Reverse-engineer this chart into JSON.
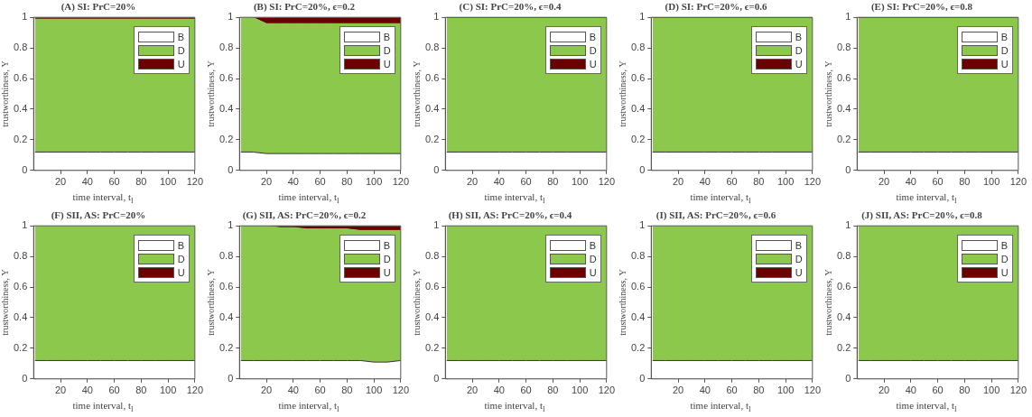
{
  "chart_data": [
    {
      "type": "area",
      "stacked": true,
      "title": "(A) SI: PrC=20%",
      "xlabel": "time interval, t$_{l}$",
      "ylabel": "trustworthiness, Υ",
      "x": [
        1,
        10,
        20,
        30,
        40,
        50,
        60,
        70,
        80,
        90,
        100,
        110,
        120
      ],
      "xlim": [
        0,
        120
      ],
      "xticks": [
        20,
        40,
        60,
        80,
        100,
        120
      ],
      "ylim": [
        0,
        1
      ],
      "yticks": [
        0,
        0.2,
        0.4,
        0.6,
        0.8,
        1
      ],
      "legend": "top right",
      "marker": "none",
      "series": [
        {
          "name": "B",
          "color": "#ffffff",
          "values": [
            0.12,
            0.12,
            0.12,
            0.12,
            0.12,
            0.12,
            0.12,
            0.12,
            0.12,
            0.12,
            0.12,
            0.12,
            0.12
          ]
        },
        {
          "name": "D",
          "color": "#8cc84b",
          "values": [
            0.87,
            0.87,
            0.87,
            0.87,
            0.87,
            0.87,
            0.87,
            0.87,
            0.87,
            0.87,
            0.87,
            0.87,
            0.87
          ]
        },
        {
          "name": "U",
          "color": "#6b0000",
          "values": [
            0.01,
            0.01,
            0.01,
            0.01,
            0.01,
            0.01,
            0.01,
            0.01,
            0.01,
            0.01,
            0.01,
            0.01,
            0.01
          ]
        }
      ]
    },
    {
      "type": "area",
      "stacked": true,
      "title": "(B) SI: PrC=20%, ϵ=0.2",
      "xlabel": "time interval, t$_{l}$",
      "ylabel": "trustworthiness, Υ",
      "x": [
        1,
        10,
        20,
        30,
        40,
        50,
        60,
        70,
        80,
        90,
        100,
        110,
        120
      ],
      "xlim": [
        0,
        120
      ],
      "xticks": [
        20,
        40,
        60,
        80,
        100,
        120
      ],
      "ylim": [
        0,
        1
      ],
      "yticks": [
        0,
        0.2,
        0.4,
        0.6,
        0.8,
        1
      ],
      "legend": "top right",
      "marker": "none",
      "series": [
        {
          "name": "B",
          "color": "#ffffff",
          "values": [
            0.12,
            0.12,
            0.11,
            0.11,
            0.11,
            0.11,
            0.11,
            0.11,
            0.11,
            0.11,
            0.11,
            0.11,
            0.11
          ]
        },
        {
          "name": "D",
          "color": "#8cc84b",
          "values": [
            0.88,
            0.88,
            0.85,
            0.85,
            0.85,
            0.85,
            0.85,
            0.85,
            0.85,
            0.85,
            0.85,
            0.85,
            0.85
          ]
        },
        {
          "name": "U",
          "color": "#6b0000",
          "values": [
            0,
            0,
            0.04,
            0.04,
            0.04,
            0.04,
            0.04,
            0.04,
            0.04,
            0.04,
            0.04,
            0.04,
            0.04
          ]
        }
      ]
    },
    {
      "type": "area",
      "stacked": true,
      "title": "(C) SI: PrC=20%, ϵ=0.4",
      "xlabel": "time interval, t$_{l}$",
      "ylabel": "trustworthiness, Υ",
      "x": [
        1,
        10,
        20,
        30,
        40,
        50,
        60,
        70,
        80,
        90,
        100,
        110,
        120
      ],
      "xlim": [
        0,
        120
      ],
      "xticks": [
        20,
        40,
        60,
        80,
        100,
        120
      ],
      "ylim": [
        0,
        1
      ],
      "yticks": [
        0,
        0.2,
        0.4,
        0.6,
        0.8,
        1
      ],
      "legend": "top right",
      "marker": "none",
      "series": [
        {
          "name": "B",
          "color": "#ffffff",
          "values": [
            0.12,
            0.12,
            0.12,
            0.12,
            0.12,
            0.12,
            0.12,
            0.12,
            0.12,
            0.12,
            0.12,
            0.12,
            0.12
          ]
        },
        {
          "name": "D",
          "color": "#8cc84b",
          "values": [
            0.875,
            0.875,
            0.875,
            0.875,
            0.875,
            0.875,
            0.875,
            0.875,
            0.875,
            0.875,
            0.875,
            0.875,
            0.875
          ]
        },
        {
          "name": "U",
          "color": "#6b0000",
          "values": [
            0.005,
            0.005,
            0.005,
            0.005,
            0.005,
            0.005,
            0.005,
            0.005,
            0.005,
            0.005,
            0.005,
            0.005,
            0.005
          ]
        }
      ]
    },
    {
      "type": "area",
      "stacked": true,
      "title": "(D) SI: PrC=20%, ϵ=0.6",
      "xlabel": "time interval, t$_{l}$",
      "ylabel": "trustworthiness, Υ",
      "x": [
        1,
        10,
        20,
        30,
        40,
        50,
        60,
        70,
        80,
        90,
        100,
        110,
        120
      ],
      "xlim": [
        0,
        120
      ],
      "xticks": [
        20,
        40,
        60,
        80,
        100,
        120
      ],
      "ylim": [
        0,
        1
      ],
      "yticks": [
        0,
        0.2,
        0.4,
        0.6,
        0.8,
        1
      ],
      "legend": "top right",
      "marker": "none",
      "series": [
        {
          "name": "B",
          "color": "#ffffff",
          "values": [
            0.12,
            0.12,
            0.12,
            0.12,
            0.12,
            0.12,
            0.12,
            0.12,
            0.12,
            0.12,
            0.12,
            0.12,
            0.12
          ]
        },
        {
          "name": "D",
          "color": "#8cc84b",
          "values": [
            0.875,
            0.875,
            0.875,
            0.875,
            0.875,
            0.875,
            0.875,
            0.875,
            0.875,
            0.875,
            0.875,
            0.875,
            0.875
          ]
        },
        {
          "name": "U",
          "color": "#6b0000",
          "values": [
            0.005,
            0.005,
            0.005,
            0.005,
            0.005,
            0.005,
            0.005,
            0.005,
            0.005,
            0.005,
            0.005,
            0.005,
            0.005
          ]
        }
      ]
    },
    {
      "type": "area",
      "stacked": true,
      "title": "(E) SI: PrC=20%, ϵ=0.8",
      "xlabel": "time interval, t$_{l}$",
      "ylabel": "trustworthiness, Υ",
      "x": [
        1,
        10,
        20,
        30,
        40,
        50,
        60,
        70,
        80,
        90,
        100,
        110,
        120
      ],
      "xlim": [
        0,
        120
      ],
      "xticks": [
        20,
        40,
        60,
        80,
        100,
        120
      ],
      "ylim": [
        0,
        1
      ],
      "yticks": [
        0,
        0.2,
        0.4,
        0.6,
        0.8,
        1
      ],
      "legend": "top right",
      "marker": "none",
      "series": [
        {
          "name": "B",
          "color": "#ffffff",
          "values": [
            0.12,
            0.12,
            0.12,
            0.12,
            0.12,
            0.12,
            0.12,
            0.12,
            0.12,
            0.12,
            0.12,
            0.12,
            0.12
          ]
        },
        {
          "name": "D",
          "color": "#8cc84b",
          "values": [
            0.875,
            0.875,
            0.875,
            0.875,
            0.875,
            0.875,
            0.875,
            0.875,
            0.875,
            0.875,
            0.875,
            0.875,
            0.875
          ]
        },
        {
          "name": "U",
          "color": "#6b0000",
          "values": [
            0.005,
            0.005,
            0.005,
            0.005,
            0.005,
            0.005,
            0.005,
            0.005,
            0.005,
            0.005,
            0.005,
            0.005,
            0.005
          ]
        }
      ]
    },
    {
      "type": "area",
      "stacked": true,
      "title": "(F) SII, AS: PrC=20%",
      "xlabel": "time interval, t$_{l}$",
      "ylabel": "trustworthiness, Υ",
      "x": [
        1,
        10,
        20,
        30,
        40,
        50,
        60,
        70,
        80,
        90,
        100,
        110,
        120
      ],
      "xlim": [
        0,
        120
      ],
      "xticks": [
        20,
        40,
        60,
        80,
        100,
        120
      ],
      "ylim": [
        0,
        1
      ],
      "yticks": [
        0,
        0.2,
        0.4,
        0.6,
        0.8,
        1
      ],
      "legend": "top right",
      "marker": "none",
      "series": [
        {
          "name": "B",
          "color": "#ffffff",
          "values": [
            0.12,
            0.12,
            0.12,
            0.12,
            0.12,
            0.12,
            0.12,
            0.12,
            0.12,
            0.12,
            0.12,
            0.12,
            0.12
          ]
        },
        {
          "name": "D",
          "color": "#8cc84b",
          "values": [
            0.88,
            0.88,
            0.88,
            0.88,
            0.88,
            0.88,
            0.88,
            0.88,
            0.88,
            0.88,
            0.88,
            0.88,
            0.88
          ]
        },
        {
          "name": "U",
          "color": "#6b0000",
          "values": [
            null,
            null,
            null,
            null,
            null,
            null,
            null,
            null,
            null,
            null,
            null,
            null,
            null
          ]
        }
      ]
    },
    {
      "type": "area",
      "stacked": true,
      "title": "(G) SII, AS: PrC=20%, ϵ=0.2",
      "xlabel": "time interval, t$_{l}$",
      "ylabel": "trustworthiness, Υ",
      "x": [
        1,
        10,
        20,
        30,
        40,
        50,
        60,
        70,
        80,
        90,
        100,
        110,
        120
      ],
      "xlim": [
        0,
        120
      ],
      "xticks": [
        20,
        40,
        60,
        80,
        100,
        120
      ],
      "ylim": [
        0,
        1
      ],
      "yticks": [
        0,
        0.2,
        0.4,
        0.6,
        0.8,
        1
      ],
      "legend": "top right",
      "marker": "none",
      "series": [
        {
          "name": "B",
          "color": "#ffffff",
          "values": [
            0.12,
            0.12,
            0.12,
            0.12,
            0.12,
            0.12,
            0.12,
            0.12,
            0.12,
            0.12,
            0.11,
            0.11,
            0.12
          ]
        },
        {
          "name": "D",
          "color": "#8cc84b",
          "values": [
            0.88,
            0.88,
            0.88,
            0.87,
            0.87,
            0.86,
            0.86,
            0.86,
            0.86,
            0.85,
            0.86,
            0.86,
            0.85
          ]
        },
        {
          "name": "U",
          "color": "#6b0000",
          "values": [
            0,
            0,
            0,
            0.01,
            0.01,
            0.02,
            0.02,
            0.02,
            0.02,
            0.03,
            0.03,
            0.03,
            0.03
          ]
        }
      ]
    },
    {
      "type": "area",
      "stacked": true,
      "title": "(H) SII, AS: PrC=20%, ϵ=0.4",
      "xlabel": "time interval, t$_{l}$",
      "ylabel": "trustworthiness, Υ",
      "x": [
        1,
        10,
        20,
        30,
        40,
        50,
        60,
        70,
        80,
        90,
        100,
        110,
        120
      ],
      "xlim": [
        0,
        120
      ],
      "xticks": [
        20,
        40,
        60,
        80,
        100,
        120
      ],
      "ylim": [
        0,
        1
      ],
      "yticks": [
        0,
        0.2,
        0.4,
        0.6,
        0.8,
        1
      ],
      "legend": "top right",
      "marker": "none",
      "series": [
        {
          "name": "B",
          "color": "#ffffff",
          "values": [
            0.12,
            0.12,
            0.12,
            0.12,
            0.12,
            0.12,
            0.12,
            0.12,
            0.12,
            0.12,
            0.12,
            0.12,
            0.12
          ]
        },
        {
          "name": "D",
          "color": "#8cc84b",
          "values": [
            0.88,
            0.88,
            0.88,
            0.88,
            0.88,
            0.88,
            0.88,
            0.88,
            0.88,
            0.88,
            0.88,
            0.88,
            0.88
          ]
        },
        {
          "name": "U",
          "color": "#6b0000",
          "values": [
            null,
            null,
            null,
            null,
            null,
            null,
            null,
            null,
            null,
            null,
            null,
            null,
            null
          ]
        }
      ]
    },
    {
      "type": "area",
      "stacked": true,
      "title": "(I) SII, AS: PrC=20%, ϵ=0.6",
      "xlabel": "time interval, t$_{l}$",
      "ylabel": "trustworthiness, Υ",
      "x": [
        1,
        10,
        20,
        30,
        40,
        50,
        60,
        70,
        80,
        90,
        100,
        110,
        120
      ],
      "xlim": [
        0,
        120
      ],
      "xticks": [
        20,
        40,
        60,
        80,
        100,
        120
      ],
      "ylim": [
        0,
        1
      ],
      "yticks": [
        0,
        0.2,
        0.4,
        0.6,
        0.8,
        1
      ],
      "legend": "top right",
      "marker": "none",
      "series": [
        {
          "name": "B",
          "color": "#ffffff",
          "values": [
            0.12,
            0.12,
            0.12,
            0.12,
            0.12,
            0.12,
            0.12,
            0.12,
            0.12,
            0.12,
            0.12,
            0.12,
            0.12
          ]
        },
        {
          "name": "D",
          "color": "#8cc84b",
          "values": [
            0.88,
            0.88,
            0.88,
            0.88,
            0.88,
            0.88,
            0.88,
            0.88,
            0.88,
            0.88,
            0.88,
            0.88,
            0.88
          ]
        },
        {
          "name": "U",
          "color": "#6b0000",
          "values": [
            null,
            null,
            null,
            null,
            null,
            null,
            null,
            null,
            null,
            null,
            null,
            null,
            null
          ]
        }
      ]
    },
    {
      "type": "area",
      "stacked": true,
      "title": "(J) SII, AS: PrC=20%, ϵ=0.8",
      "xlabel": "time interval, t$_{l}$",
      "ylabel": "trustworthiness, Υ",
      "x": [
        1,
        10,
        20,
        30,
        40,
        50,
        60,
        70,
        80,
        90,
        100,
        110,
        120
      ],
      "xlim": [
        0,
        120
      ],
      "xticks": [
        20,
        40,
        60,
        80,
        100,
        120
      ],
      "ylim": [
        0,
        1
      ],
      "yticks": [
        0,
        0.2,
        0.4,
        0.6,
        0.8,
        1
      ],
      "legend": "top right",
      "marker": "none",
      "series": [
        {
          "name": "B",
          "color": "#ffffff",
          "values": [
            0.12,
            0.12,
            0.12,
            0.12,
            0.12,
            0.12,
            0.12,
            0.12,
            0.12,
            0.12,
            0.12,
            0.12,
            0.12
          ]
        },
        {
          "name": "D",
          "color": "#8cc84b",
          "values": [
            0.88,
            0.88,
            0.88,
            0.88,
            0.88,
            0.88,
            0.88,
            0.88,
            0.88,
            0.88,
            0.88,
            0.88,
            0.88
          ]
        },
        {
          "name": "U",
          "color": "#6b0000",
          "values": [
            null,
            null,
            null,
            null,
            null,
            null,
            null,
            null,
            null,
            null,
            null,
            null,
            null
          ]
        }
      ]
    }
  ]
}
